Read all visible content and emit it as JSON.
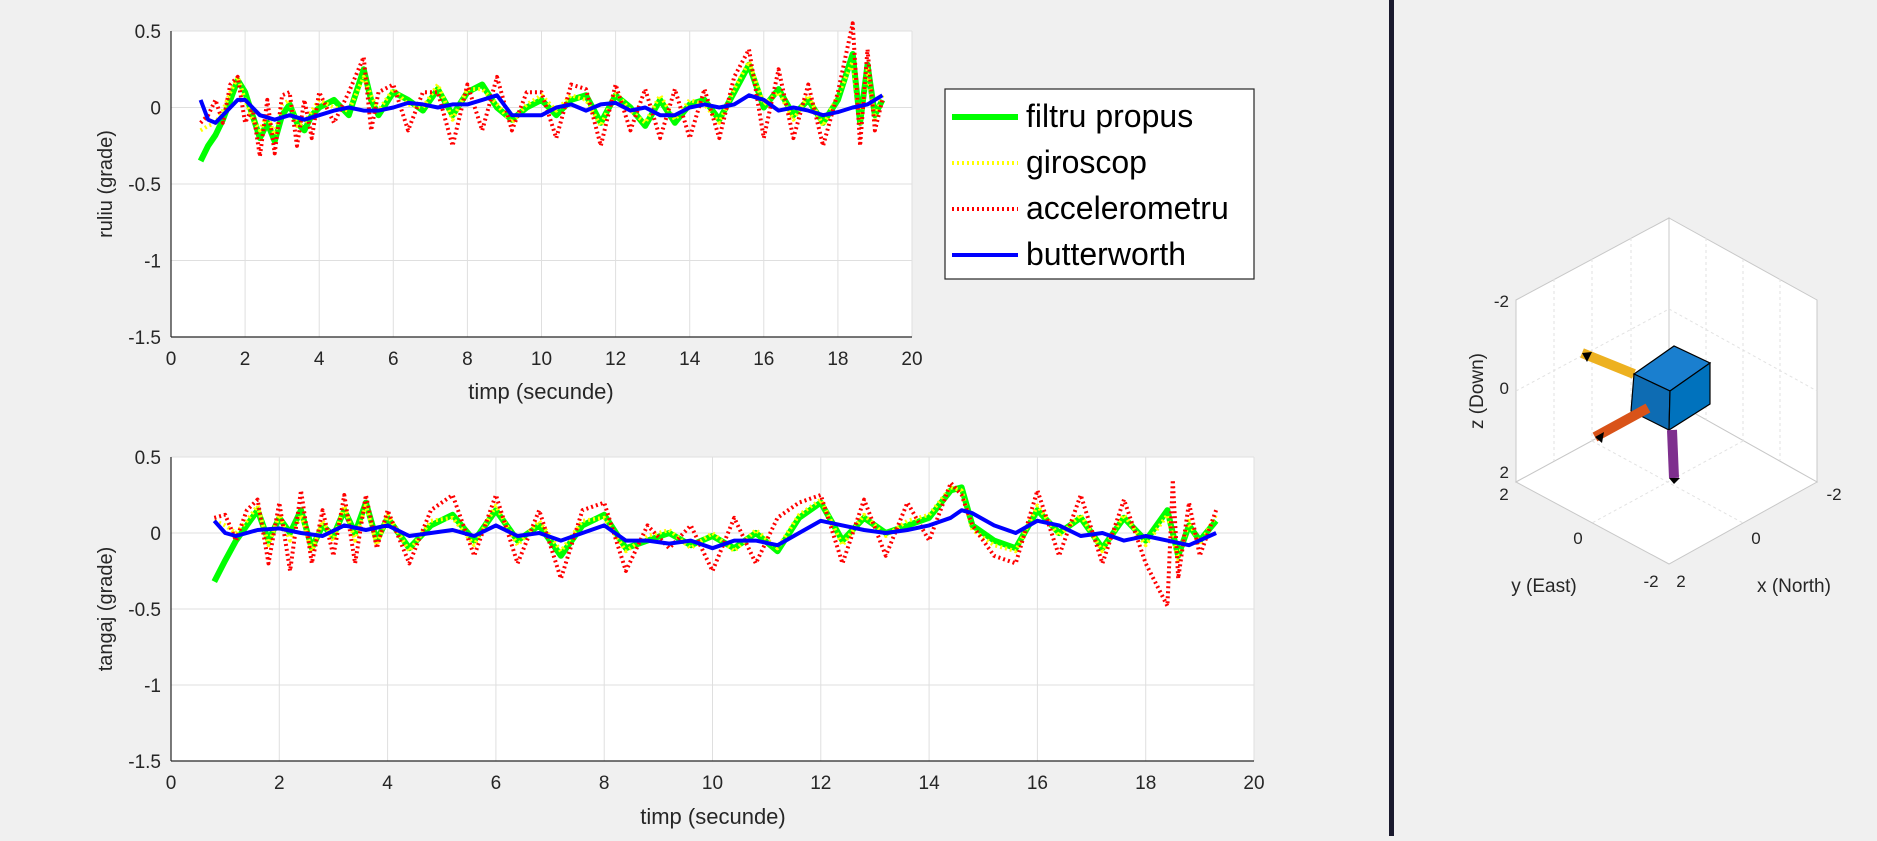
{
  "colors": {
    "filtru_propus": "#00ff00",
    "giroscop": "#ffff00",
    "accelerometru": "#ff0000",
    "butterworth": "#0000ff",
    "cube": "#0072bd",
    "arrow_x": "#d95319",
    "arrow_y": "#edb120",
    "arrow_z": "#7e2f8e"
  },
  "legend": {
    "items": [
      {
        "label": "filtru propus",
        "style": "solid-thick"
      },
      {
        "label": "giroscop",
        "style": "dotted"
      },
      {
        "label": "accelerometru",
        "style": "dotted"
      },
      {
        "label": "butterworth",
        "style": "solid"
      }
    ]
  },
  "orientation_view": {
    "x_label": "x (North)",
    "y_label": "y (East)",
    "z_label": "z (Down)",
    "x_ticks": [
      "2",
      "0",
      "-2"
    ],
    "y_ticks": [
      "2",
      "0",
      "-2"
    ],
    "z_ticks": [
      "-2",
      "0",
      "2"
    ]
  },
  "chart_data": [
    {
      "type": "line",
      "xlabel": "timp (secunde)",
      "ylabel": "ruliu (grade)",
      "xlim": [
        0,
        20
      ],
      "ylim": [
        -1.5,
        0.5
      ],
      "xticks": [
        "0",
        "2",
        "4",
        "6",
        "8",
        "10",
        "12",
        "14",
        "16",
        "18",
        "20"
      ],
      "yticks": [
        "0.5",
        "0",
        "-0.5",
        "-1",
        "-1.5"
      ],
      "grid": true,
      "legend_position": "outside-right",
      "series": [
        {
          "name": "filtru propus",
          "x": [
            0.8,
            1.0,
            1.2,
            1.4,
            1.6,
            1.8,
            2.0,
            2.2,
            2.4,
            2.6,
            2.8,
            3.0,
            3.2,
            3.4,
            3.6,
            3.8,
            4.0,
            4.4,
            4.8,
            5.2,
            5.4,
            5.6,
            6.0,
            6.4,
            6.8,
            7.2,
            7.6,
            8.0,
            8.4,
            8.8,
            9.2,
            9.6,
            10.0,
            10.4,
            10.8,
            11.2,
            11.6,
            12.0,
            12.4,
            12.8,
            13.2,
            13.6,
            14.0,
            14.4,
            14.8,
            15.2,
            15.6,
            16.0,
            16.4,
            16.8,
            17.2,
            17.6,
            18.0,
            18.4,
            18.6,
            18.8,
            19.0,
            19.2
          ],
          "y": [
            -0.35,
            -0.25,
            -0.18,
            -0.08,
            0.05,
            0.18,
            0.1,
            -0.05,
            -0.2,
            -0.1,
            -0.22,
            -0.05,
            0.02,
            -0.1,
            -0.15,
            -0.05,
            0.0,
            0.05,
            -0.05,
            0.25,
            0.05,
            -0.05,
            0.1,
            0.05,
            -0.02,
            0.12,
            -0.05,
            0.1,
            0.15,
            0.0,
            -0.08,
            0.0,
            0.05,
            -0.05,
            0.05,
            0.08,
            -0.1,
            0.08,
            0.0,
            -0.12,
            0.05,
            -0.1,
            0.02,
            0.05,
            -0.08,
            0.1,
            0.28,
            0.0,
            0.12,
            -0.05,
            0.05,
            -0.1,
            0.05,
            0.35,
            -0.1,
            0.28,
            -0.05,
            0.05
          ]
        },
        {
          "name": "giroscop",
          "x": [
            0.8,
            1.0,
            1.2,
            1.4,
            1.6,
            1.8,
            2.0,
            2.2,
            2.4,
            2.6,
            2.8,
            3.0,
            3.2,
            3.4,
            3.6,
            3.8,
            4.0,
            4.4,
            4.8,
            5.2,
            5.4,
            5.6,
            6.0,
            6.4,
            6.8,
            7.2,
            7.6,
            8.0,
            8.4,
            8.8,
            9.2,
            9.6,
            10.0,
            10.4,
            10.8,
            11.2,
            11.6,
            12.0,
            12.4,
            12.8,
            13.2,
            13.6,
            14.0,
            14.4,
            14.8,
            15.2,
            15.6,
            16.0,
            16.4,
            16.8,
            17.2,
            17.6,
            18.0,
            18.4,
            18.6,
            18.8,
            19.0,
            19.2
          ],
          "y": [
            -0.15,
            -0.12,
            -0.1,
            -0.02,
            0.1,
            0.2,
            0.05,
            -0.08,
            -0.15,
            -0.05,
            -0.18,
            0.02,
            0.05,
            -0.12,
            -0.1,
            -0.02,
            0.05,
            0.0,
            -0.02,
            0.2,
            0.08,
            -0.02,
            0.12,
            0.02,
            0.0,
            0.15,
            -0.08,
            0.12,
            0.12,
            0.02,
            -0.1,
            0.02,
            0.08,
            -0.02,
            0.08,
            0.05,
            -0.12,
            0.1,
            -0.02,
            -0.1,
            0.08,
            -0.08,
            0.05,
            0.02,
            -0.1,
            0.12,
            0.3,
            0.02,
            0.1,
            -0.08,
            0.08,
            -0.12,
            0.08,
            0.3,
            -0.12,
            0.25,
            -0.08,
            0.08
          ]
        },
        {
          "name": "accelerometru",
          "x": [
            0.8,
            1.0,
            1.2,
            1.4,
            1.6,
            1.8,
            2.0,
            2.2,
            2.4,
            2.6,
            2.8,
            3.0,
            3.2,
            3.4,
            3.6,
            3.8,
            4.0,
            4.4,
            4.8,
            5.2,
            5.4,
            5.6,
            6.0,
            6.4,
            6.8,
            7.2,
            7.6,
            8.0,
            8.4,
            8.8,
            9.2,
            9.6,
            10.0,
            10.4,
            10.8,
            11.2,
            11.6,
            12.0,
            12.4,
            12.8,
            13.2,
            13.6,
            14.0,
            14.4,
            14.8,
            15.2,
            15.6,
            16.0,
            16.4,
            16.8,
            17.2,
            17.6,
            18.0,
            18.4,
            18.6,
            18.8,
            19.0,
            19.2
          ],
          "y": [
            -0.1,
            -0.05,
            0.05,
            -0.1,
            0.15,
            0.2,
            -0.1,
            0.0,
            -0.32,
            0.05,
            -0.3,
            0.08,
            0.1,
            -0.25,
            0.05,
            -0.2,
            0.1,
            -0.1,
            0.1,
            0.33,
            -0.15,
            0.1,
            0.15,
            -0.15,
            0.1,
            0.1,
            -0.25,
            0.15,
            -0.15,
            0.2,
            -0.15,
            0.1,
            0.1,
            -0.2,
            0.15,
            0.12,
            -0.25,
            0.15,
            -0.15,
            0.12,
            -0.2,
            0.12,
            -0.2,
            0.12,
            -0.2,
            0.2,
            0.38,
            -0.2,
            0.25,
            -0.2,
            0.15,
            -0.25,
            0.1,
            0.55,
            -0.25,
            0.38,
            -0.15,
            0.05
          ]
        },
        {
          "name": "butterworth",
          "x": [
            0.8,
            1.0,
            1.2,
            1.4,
            1.6,
            1.8,
            2.0,
            2.4,
            2.8,
            3.2,
            3.6,
            4.0,
            4.4,
            4.8,
            5.2,
            5.6,
            6.0,
            6.4,
            6.8,
            7.2,
            7.6,
            8.0,
            8.4,
            8.8,
            9.2,
            9.6,
            10.0,
            10.4,
            10.8,
            11.2,
            11.6,
            12.0,
            12.4,
            12.8,
            13.2,
            13.6,
            14.0,
            14.4,
            14.8,
            15.2,
            15.6,
            16.0,
            16.4,
            16.8,
            17.2,
            17.6,
            18.0,
            18.4,
            18.8,
            19.2
          ],
          "y": [
            0.05,
            -0.08,
            -0.1,
            -0.05,
            0.0,
            0.05,
            0.05,
            -0.05,
            -0.08,
            -0.05,
            -0.08,
            -0.05,
            -0.02,
            0.0,
            -0.02,
            -0.02,
            0.0,
            0.03,
            0.02,
            0.0,
            0.02,
            0.02,
            0.05,
            0.08,
            -0.05,
            -0.05,
            -0.05,
            0.0,
            0.02,
            -0.02,
            0.02,
            0.03,
            -0.02,
            0.0,
            -0.05,
            -0.05,
            0.0,
            0.02,
            0.0,
            0.02,
            0.08,
            0.05,
            -0.02,
            0.0,
            -0.02,
            -0.05,
            -0.03,
            0.0,
            0.02,
            0.08
          ]
        }
      ]
    },
    {
      "type": "line",
      "xlabel": "timp (secunde)",
      "ylabel": "tangaj (grade)",
      "xlim": [
        0,
        20
      ],
      "ylim": [
        -1.5,
        0.5
      ],
      "xticks": [
        "0",
        "2",
        "4",
        "6",
        "8",
        "10",
        "12",
        "14",
        "16",
        "18",
        "20"
      ],
      "yticks": [
        "0.5",
        "0",
        "-0.5",
        "-1",
        "-1.5"
      ],
      "grid": true,
      "series": [
        {
          "name": "filtru propus",
          "x": [
            0.8,
            1.0,
            1.2,
            1.4,
            1.6,
            1.8,
            2.0,
            2.2,
            2.4,
            2.6,
            2.8,
            3.0,
            3.2,
            3.4,
            3.6,
            3.8,
            4.0,
            4.4,
            4.8,
            5.2,
            5.6,
            6.0,
            6.4,
            6.8,
            7.2,
            7.6,
            8.0,
            8.4,
            8.8,
            9.2,
            9.6,
            10.0,
            10.4,
            10.8,
            11.2,
            11.6,
            12.0,
            12.4,
            12.8,
            13.2,
            13.6,
            14.0,
            14.4,
            14.6,
            14.8,
            15.2,
            15.6,
            16.0,
            16.4,
            16.8,
            17.2,
            17.6,
            18.0,
            18.4,
            18.6,
            18.8,
            19.0,
            19.3
          ],
          "y": [
            -0.32,
            -0.18,
            -0.05,
            0.05,
            0.15,
            -0.05,
            0.1,
            0.0,
            0.15,
            -0.1,
            0.05,
            -0.02,
            0.15,
            0.0,
            0.2,
            -0.05,
            0.1,
            -0.1,
            0.05,
            0.12,
            -0.05,
            0.15,
            -0.05,
            0.05,
            -0.15,
            0.05,
            0.12,
            -0.1,
            -0.05,
            0.0,
            -0.08,
            -0.02,
            -0.1,
            0.0,
            -0.12,
            0.1,
            0.2,
            -0.05,
            0.1,
            0.0,
            0.05,
            0.1,
            0.28,
            0.3,
            0.05,
            -0.05,
            -0.1,
            0.15,
            0.0,
            0.1,
            -0.1,
            0.1,
            -0.05,
            0.15,
            -0.15,
            0.05,
            -0.05,
            0.08
          ]
        },
        {
          "name": "giroscop",
          "x": [
            0.8,
            1.0,
            1.2,
            1.4,
            1.6,
            1.8,
            2.0,
            2.2,
            2.4,
            2.6,
            2.8,
            3.0,
            3.2,
            3.4,
            3.6,
            3.8,
            4.0,
            4.4,
            4.8,
            5.2,
            5.6,
            6.0,
            6.4,
            6.8,
            7.2,
            7.6,
            8.0,
            8.4,
            8.8,
            9.2,
            9.6,
            10.0,
            10.4,
            10.8,
            11.2,
            11.6,
            12.0,
            12.4,
            12.8,
            13.2,
            13.6,
            14.0,
            14.4,
            14.6,
            14.8,
            15.2,
            15.6,
            16.0,
            16.4,
            16.8,
            17.2,
            17.6,
            18.0,
            18.4,
            18.6,
            18.8,
            19.0,
            19.3
          ],
          "y": [
            0.08,
            0.05,
            0.0,
            0.08,
            0.18,
            -0.08,
            0.12,
            -0.05,
            0.12,
            -0.12,
            0.08,
            -0.05,
            0.18,
            -0.05,
            0.18,
            -0.08,
            0.12,
            -0.12,
            0.08,
            0.1,
            -0.08,
            0.18,
            -0.08,
            0.08,
            -0.12,
            0.08,
            0.1,
            -0.12,
            -0.02,
            0.02,
            -0.1,
            0.0,
            -0.12,
            0.02,
            -0.1,
            0.12,
            0.22,
            -0.08,
            0.12,
            -0.02,
            0.08,
            0.12,
            0.3,
            0.28,
            0.02,
            -0.08,
            -0.12,
            0.18,
            -0.02,
            0.12,
            -0.12,
            0.12,
            -0.08,
            0.12,
            -0.18,
            0.08,
            -0.08,
            0.12
          ]
        },
        {
          "name": "accelerometru",
          "x": [
            0.8,
            1.0,
            1.2,
            1.4,
            1.6,
            1.8,
            2.0,
            2.2,
            2.4,
            2.6,
            2.8,
            3.0,
            3.2,
            3.4,
            3.6,
            3.8,
            4.0,
            4.4,
            4.8,
            5.2,
            5.6,
            6.0,
            6.4,
            6.8,
            7.2,
            7.6,
            8.0,
            8.4,
            8.8,
            9.2,
            9.6,
            10.0,
            10.4,
            10.8,
            11.2,
            11.6,
            12.0,
            12.4,
            12.8,
            13.2,
            13.6,
            14.0,
            14.4,
            14.6,
            14.8,
            15.2,
            15.6,
            16.0,
            16.4,
            16.8,
            17.2,
            17.6,
            18.0,
            18.4,
            18.5,
            18.6,
            18.8,
            19.0,
            19.3
          ],
          "y": [
            0.1,
            0.12,
            -0.05,
            0.15,
            0.22,
            -0.2,
            0.2,
            -0.25,
            0.28,
            -0.2,
            0.15,
            -0.15,
            0.25,
            -0.2,
            0.25,
            -0.1,
            0.15,
            -0.2,
            0.15,
            0.25,
            -0.15,
            0.25,
            -0.2,
            0.15,
            -0.3,
            0.15,
            0.2,
            -0.25,
            0.05,
            -0.1,
            0.05,
            -0.25,
            0.1,
            -0.2,
            0.1,
            0.2,
            0.25,
            -0.2,
            0.22,
            -0.15,
            0.2,
            -0.05,
            0.33,
            0.25,
            0.05,
            -0.15,
            -0.2,
            0.28,
            -0.15,
            0.25,
            -0.2,
            0.22,
            -0.2,
            -0.48,
            0.35,
            -0.3,
            0.2,
            -0.15,
            0.15
          ]
        },
        {
          "name": "butterworth",
          "x": [
            0.8,
            1.0,
            1.2,
            1.6,
            2.0,
            2.4,
            2.8,
            3.2,
            3.6,
            4.0,
            4.4,
            4.8,
            5.2,
            5.6,
            6.0,
            6.4,
            6.8,
            7.2,
            7.6,
            8.0,
            8.4,
            8.8,
            9.2,
            9.6,
            10.0,
            10.4,
            10.8,
            11.2,
            11.6,
            12.0,
            12.4,
            12.8,
            13.2,
            13.6,
            14.0,
            14.4,
            14.6,
            14.8,
            15.2,
            15.6,
            16.0,
            16.4,
            16.8,
            17.2,
            17.6,
            18.0,
            18.4,
            18.8,
            19.3
          ],
          "y": [
            0.08,
            0.0,
            -0.02,
            0.02,
            0.03,
            0.0,
            -0.02,
            0.05,
            0.02,
            0.05,
            -0.02,
            0.0,
            0.02,
            -0.02,
            0.05,
            -0.02,
            0.0,
            -0.05,
            0.0,
            0.05,
            -0.05,
            -0.05,
            -0.07,
            -0.05,
            -0.1,
            -0.05,
            -0.05,
            -0.08,
            0.0,
            0.08,
            0.05,
            0.02,
            0.0,
            0.02,
            0.05,
            0.1,
            0.15,
            0.13,
            0.05,
            0.0,
            0.08,
            0.05,
            -0.02,
            0.0,
            -0.05,
            -0.02,
            -0.05,
            -0.08,
            0.0
          ]
        }
      ]
    }
  ]
}
